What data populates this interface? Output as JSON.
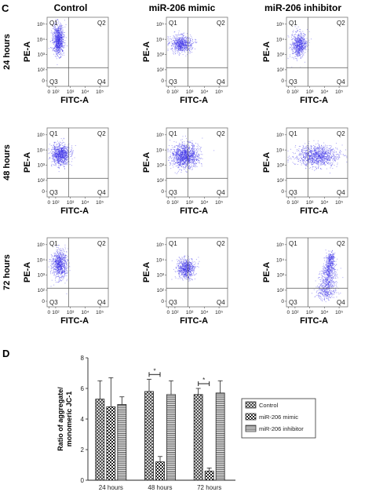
{
  "panel_c": {
    "letter": "C",
    "columns": [
      "Control",
      "miR-206 mimic",
      "miR-206 inhibitor"
    ],
    "rows": [
      "24 hours",
      "48 hours",
      "72 hours"
    ],
    "x_label": "FITC-A",
    "y_label": "PE-A",
    "quadrants": [
      "Q1",
      "Q2",
      "Q3",
      "Q4"
    ],
    "x_ticks": [
      "0",
      "10²",
      "10³",
      "10⁴",
      "10⁵"
    ],
    "y_ticks": [
      "10⁵",
      "10⁴",
      "10³",
      "10²",
      "0"
    ],
    "dot_color": "#3a2ee8"
  },
  "chart_data": {
    "panel_letter": "D",
    "type": "bar",
    "categories": [
      "24 hours",
      "48 hours",
      "72 hours"
    ],
    "series": [
      {
        "name": "Control",
        "values": [
          5.3,
          5.8,
          5.6
        ],
        "errors": [
          1.2,
          0.8,
          0.4
        ],
        "pattern": "crosshatch"
      },
      {
        "name": "miR-206 mimic",
        "values": [
          4.8,
          1.2,
          0.6
        ],
        "errors": [
          1.9,
          0.35,
          0.2
        ],
        "pattern": "checker"
      },
      {
        "name": "miR-206 inhibitor",
        "values": [
          4.95,
          5.6,
          5.7
        ],
        "errors": [
          0.5,
          0.9,
          0.8
        ],
        "pattern": "stripes"
      }
    ],
    "ylabel": "Ratio of aggregate/ monomeric JC-1",
    "ylabel_lines": [
      "Ratio of aggregate/",
      "monomeric JC-1"
    ],
    "ylim": [
      0,
      8
    ],
    "yticks": [
      0,
      2,
      4,
      6,
      8
    ],
    "significance": [
      {
        "category": "48 hours",
        "label": "*"
      },
      {
        "category": "72 hours",
        "label": "*"
      }
    ],
    "legend_position": "right"
  }
}
